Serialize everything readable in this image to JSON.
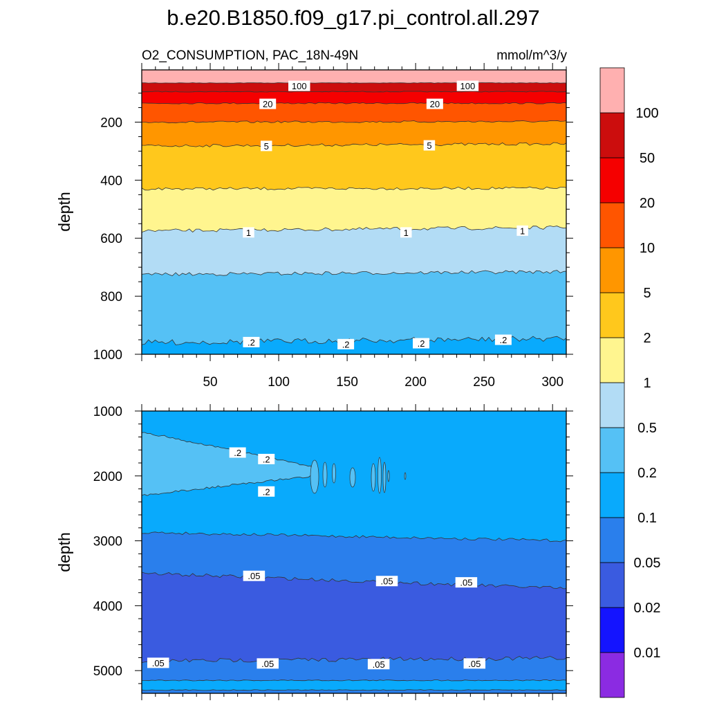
{
  "chart_data": {
    "type": "contour",
    "title": "b.e20.B1850.f09_g17.pi_control.all.297",
    "subtitle_left": "O2_CONSUMPTION, PAC_18N-49N",
    "subtitle_right": "mmol/m^3/y",
    "colorbar": {
      "levels": [
        0.01,
        0.02,
        0.05,
        0.1,
        0.2,
        0.5,
        1,
        2,
        5,
        10,
        20,
        50,
        100
      ],
      "labels": [
        "0.01",
        "0.02",
        "0.05",
        "0.1",
        "0.2",
        "0.5",
        "1",
        "2",
        "5",
        "10",
        "20",
        "50",
        "100"
      ],
      "colors": [
        "#8B2BE2",
        "#1414FF",
        "#3A5BE0",
        "#2A7FEC",
        "#09AAFC",
        "#55C1F5",
        "#B2DCF5",
        "#FFF58F",
        "#FFC81C",
        "#FF9600",
        "#FF5500",
        "#F50000",
        "#CC0D0D",
        "#FFB0B0"
      ]
    },
    "panels": [
      {
        "name": "upper",
        "ylabel": "depth",
        "ylim": [
          1000,
          20
        ],
        "xlim": [
          0,
          310
        ],
        "xticks": [
          "50",
          "100",
          "150",
          "200",
          "250",
          "300"
        ],
        "yticks": [
          "200",
          "400",
          "600",
          "800",
          "1000"
        ],
        "bands": [
          {
            "value_range": "> 100",
            "depth_top": 20,
            "depth_bottom": 65
          },
          {
            "value_range": "50–100",
            "depth_top": 65,
            "depth_bottom": 95
          },
          {
            "value_range": "20–50",
            "depth_top": 95,
            "depth_bottom": 135
          },
          {
            "value_range": "10–20",
            "depth_top": 135,
            "depth_bottom": 200
          },
          {
            "value_range": "5–10",
            "depth_top": 200,
            "depth_bottom": 282
          },
          {
            "value_range": "2–5",
            "depth_top": 282,
            "depth_bottom": 430
          },
          {
            "value_range": "1–2",
            "depth_top": 430,
            "depth_bottom": 575
          },
          {
            "value_range": "0.5–1",
            "depth_top": 575,
            "depth_bottom": 725
          },
          {
            "value_range": "0.2–0.5",
            "depth_top": 725,
            "depth_bottom": 960
          },
          {
            "value_range": "0.1–0.2",
            "depth_top": 960,
            "depth_bottom": 1000
          }
        ],
        "contour_labels": [
          {
            "text": "100",
            "x": 115,
            "depth": 75
          },
          {
            "text": "100",
            "x": 238,
            "depth": 75
          },
          {
            "text": "20",
            "x": 92,
            "depth": 137
          },
          {
            "text": "20",
            "x": 214,
            "depth": 137
          },
          {
            "text": "5",
            "x": 91,
            "depth": 282
          },
          {
            "text": "5",
            "x": 210,
            "depth": 280
          },
          {
            "text": "1",
            "x": 78,
            "depth": 580
          },
          {
            "text": "1",
            "x": 193,
            "depth": 580
          },
          {
            "text": "1",
            "x": 278,
            "depth": 574
          },
          {
            "text": ".2",
            "x": 80,
            "depth": 958
          },
          {
            "text": ".2",
            "x": 149,
            "depth": 965
          },
          {
            "text": ".2",
            "x": 204,
            "depth": 962
          },
          {
            "text": ".2",
            "x": 264,
            "depth": 950
          }
        ]
      },
      {
        "name": "lower",
        "ylabel": "depth",
        "ylim": [
          5350,
          1000
        ],
        "xlim": [
          0,
          310
        ],
        "yticks": [
          "1000",
          "2000",
          "3000",
          "4000",
          "5000"
        ],
        "bands": [
          {
            "value_range": "0.1–0.2",
            "depth_top": 1000,
            "depth_bottom": 1300
          },
          {
            "value_range": "0.2–0.5 (lens)",
            "depth_top": 1300,
            "depth_bottom": 2300
          },
          {
            "value_range": "0.1–0.2",
            "depth_top": 2300,
            "depth_bottom": 2870
          },
          {
            "value_range": "0.05–0.1",
            "depth_top": 2870,
            "depth_bottom": 3500
          },
          {
            "value_range": "0.02–0.05",
            "depth_top": 3500,
            "depth_bottom": 4850
          },
          {
            "value_range": "0.05–0.1",
            "depth_top": 4850,
            "depth_bottom": 5150
          },
          {
            "value_range": "0.1–0.2",
            "depth_top": 5150,
            "depth_bottom": 5350
          }
        ],
        "contour_labels": [
          {
            "text": ".2",
            "x": 70,
            "depth": 1640
          },
          {
            "text": ".2",
            "x": 91,
            "depth": 1740
          },
          {
            "text": ".2",
            "x": 91,
            "depth": 2240
          },
          {
            "text": ".05",
            "x": 82,
            "depth": 3540
          },
          {
            "text": ".05",
            "x": 179,
            "depth": 3620
          },
          {
            "text": ".05",
            "x": 237,
            "depth": 3640
          },
          {
            "text": ".05",
            "x": 12,
            "depth": 4880
          },
          {
            "text": ".05",
            "x": 92,
            "depth": 4890
          },
          {
            "text": ".05",
            "x": 173,
            "depth": 4900
          },
          {
            "text": ".05",
            "x": 243,
            "depth": 4890
          }
        ]
      }
    ]
  }
}
